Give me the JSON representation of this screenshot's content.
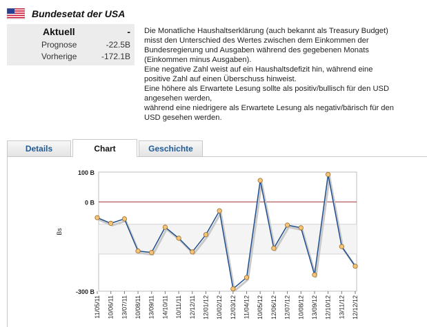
{
  "header": {
    "title": "Bundesetat der USA",
    "flag_icon": "us-flag-icon"
  },
  "stats": {
    "current_label": "Aktuell",
    "current_value": "-",
    "forecast_label": "Prognose",
    "forecast_value": "-22.5B",
    "previous_label": "Vorherige",
    "previous_value": "-172.1B"
  },
  "description": [
    "Die Monatliche Haushaltserklärung (auch bekannt als Treasury Budget)",
    "misst den Unterschied des Wertes zwischen dem Einkommen der",
    "Bundesregierung und Ausgaben während des gegebenen Monats",
    "(Einkommen minus Ausgaben).",
    "Eine negative Zahl weist auf ein Haushaltsdefizit hin, während eine",
    "positive Zahl auf einen Überschuss hinweist.",
    "Eine höhere als Erwartete Lesung sollte als positiv/bullisch für den USD",
    "angesehen werden,",
    "während eine niedrigere als Erwartete Lesung als negativ/bärisch für den",
    "USD gesehen werden."
  ],
  "tabs": [
    {
      "label": "Details",
      "active": false
    },
    {
      "label": "Chart",
      "active": true
    },
    {
      "label": "Geschichte",
      "active": false
    }
  ],
  "colors": {
    "line": "#1f4e8c",
    "marker_fill": "#f6c37a",
    "zero_line": "#a03030",
    "tab_text": "#1f5a96"
  },
  "chart_data": {
    "type": "line",
    "ylabel": "Bs",
    "ylim": [
      -300,
      100
    ],
    "y_ticks": [
      {
        "value": 100,
        "label": "100 B"
      },
      {
        "value": 0,
        "label": "0 B"
      },
      {
        "value": -300,
        "label": "-300 B"
      }
    ],
    "gridlines": [
      -75,
      -175
    ],
    "categories": [
      "11/05/11",
      "10/06/11",
      "13/07/11",
      "10/08/11",
      "13/09/11",
      "14/10/11",
      "10/11/11",
      "12/12/11",
      "12/01/12",
      "10/02/12",
      "12/03/12",
      "11/04/12",
      "10/05/12",
      "12/06/12",
      "12/07/12",
      "10/08/12",
      "13/09/12",
      "12/10/12",
      "13/11/12",
      "12/12/12"
    ],
    "values": [
      -53,
      -72,
      -57,
      -165,
      -170,
      -85,
      -122,
      -168,
      -110,
      -30,
      -292,
      -254,
      72,
      -156,
      -78,
      -87,
      -245,
      92,
      -150,
      -216
    ]
  }
}
